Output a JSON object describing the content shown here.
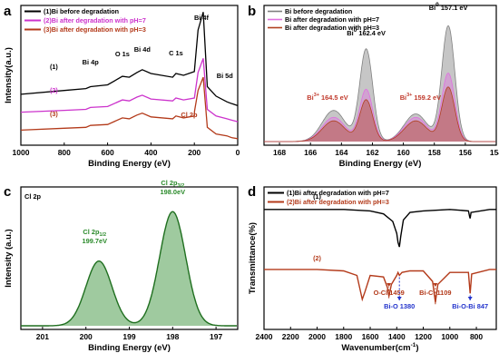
{
  "figure": {
    "panels": [
      "a",
      "b",
      "c",
      "d"
    ]
  },
  "chart_data": [
    {
      "panel": "a",
      "type": "line",
      "xlabel": "Binding Energy (eV)",
      "ylabel": "Intensity(a.u.)",
      "xlim": [
        1000,
        0
      ],
      "x_ticks": [
        1000,
        800,
        600,
        400,
        200,
        0
      ],
      "legend_position": "top-left",
      "series": [
        {
          "name": "(1)Bi before degradation",
          "tag": "(1)",
          "color": "#000000",
          "x": [
            1000,
            800,
            700,
            679,
            600,
            532,
            500,
            465,
            440,
            400,
            300,
            285,
            250,
            200,
            183,
            159,
            140,
            100,
            50,
            26,
            0
          ],
          "values": [
            820,
            860,
            880,
            900,
            920,
            1010,
            1000,
            1050,
            1080,
            1040,
            1000,
            1040,
            1020,
            1060,
            1500,
            1690,
            900,
            800,
            740,
            720,
            700
          ]
        },
        {
          "name": "(2)Bi after degradation with pH=7",
          "tag": "(2)",
          "color": "#cc33cc",
          "x": [
            1000,
            800,
            700,
            679,
            600,
            532,
            500,
            465,
            440,
            400,
            300,
            285,
            250,
            200,
            199,
            183,
            159,
            140,
            100,
            50,
            26,
            0
          ],
          "values": [
            630,
            650,
            660,
            680,
            690,
            760,
            750,
            790,
            810,
            770,
            750,
            780,
            760,
            780,
            790,
            1050,
            1200,
            660,
            590,
            560,
            545,
            530
          ]
        },
        {
          "name": "(3)Bi after degradation with pH=3",
          "tag": "(3)",
          "color": "#b33a1a",
          "x": [
            1000,
            800,
            700,
            679,
            600,
            532,
            500,
            465,
            440,
            400,
            300,
            285,
            250,
            200,
            199,
            183,
            159,
            140,
            100,
            50,
            26,
            0
          ],
          "values": [
            440,
            460,
            470,
            490,
            500,
            570,
            560,
            600,
            620,
            580,
            560,
            590,
            570,
            590,
            640,
            860,
            1000,
            470,
            400,
            380,
            360,
            350
          ]
        }
      ],
      "annotations": [
        "Bi 4f",
        "Bi 4p",
        "O 1s",
        "Bi 4d",
        "C 1s",
        "Bi 5d",
        "Cl 2p"
      ]
    },
    {
      "panel": "b",
      "type": "area",
      "xlabel": "Binding Energy (eV)",
      "xlim": [
        169,
        154
      ],
      "x_ticks": [
        168,
        166,
        164,
        162,
        160,
        158,
        156,
        154
      ],
      "legend_position": "top-left",
      "series": [
        {
          "name": "Bi before degradation",
          "color": "#808080",
          "peaks": [
            {
              "center": 164.5,
              "height": 0.27
            },
            {
              "center": 162.4,
              "height": 0.8
            },
            {
              "center": 159.2,
              "height": 0.24
            },
            {
              "center": 157.1,
              "height": 1.0
            }
          ]
        },
        {
          "name": "Bi after degradation with pH=7",
          "color": "#e070e0",
          "peaks": [
            {
              "center": 164.5,
              "height": 0.21
            },
            {
              "center": 162.4,
              "height": 0.45
            },
            {
              "center": 159.2,
              "height": 0.21
            },
            {
              "center": 157.1,
              "height": 0.59
            }
          ]
        },
        {
          "name": "Bi after degradation with pH=3",
          "color": "#b04020",
          "peaks": [
            {
              "center": 164.5,
              "height": 0.18
            },
            {
              "center": 162.4,
              "height": 0.36
            },
            {
              "center": 159.2,
              "height": 0.18
            },
            {
              "center": 157.1,
              "height": 0.47
            }
          ]
        }
      ],
      "labels": [
        {
          "main": "Bi",
          "sup": "0",
          "tail": " 157.1 eV",
          "x": 157.1,
          "level": 1.14
        },
        {
          "main": "Bi",
          "sup": "0",
          "tail": " 162.4 eV",
          "x": 162.4,
          "level": 0.92
        },
        {
          "main": "Bi",
          "sup": "3+",
          "tail": " 164.5 eV",
          "x": 164.9,
          "level": 0.36
        },
        {
          "main": "Bi",
          "sup": "3+",
          "tail": " 159.2 eV",
          "x": 158.9,
          "level": 0.36
        }
      ]
    },
    {
      "panel": "c",
      "type": "area",
      "title": "Cl 2p",
      "xlabel": "Binding Energy (eV)",
      "ylabel": "Intensity (a.u.)",
      "xlim": [
        201.5,
        196.5
      ],
      "x_ticks": [
        201,
        200,
        199,
        198,
        197
      ],
      "color": "#2a8a2a",
      "peaks": [
        {
          "center": 199.7,
          "height": 0.55
        },
        {
          "center": 198.0,
          "height": 0.97
        }
      ],
      "labels": [
        {
          "main": "Cl 2p",
          "sub": "1/2",
          "value": "199.7eV",
          "x": 199.8,
          "level": 0.7
        },
        {
          "main": "Cl 2p",
          "sub": "3/2",
          "value": "198.0eV",
          "x": 198.0,
          "level": 1.12
        }
      ]
    },
    {
      "panel": "d",
      "type": "line",
      "xlabel": "Wavenumber(cm",
      "xlabel_sup": "-1",
      "xlabel_tail": ")",
      "ylabel": "Transmittance(%)",
      "xlim": [
        2400,
        650
      ],
      "x_ticks": [
        2400,
        2200,
        2000,
        1800,
        1600,
        1400,
        1200,
        1000,
        800
      ],
      "legend_position": "top-left",
      "series": [
        {
          "name": "(1)Bi after degradation with pH=7",
          "tag": "(1)",
          "color": "#000000",
          "x": [
            2400,
            2000,
            1800,
            1600,
            1500,
            1430,
            1400,
            1390,
            1380,
            1370,
            1350,
            1300,
            1200,
            1000,
            860,
            850,
            847,
            840,
            700,
            650
          ],
          "values": [
            100,
            100,
            100,
            99,
            97,
            92,
            84,
            78,
            75,
            82,
            93,
            98,
            99,
            100,
            99,
            95,
            94,
            98,
            100,
            100
          ]
        },
        {
          "name": "(2)Bi after degradation with pH=3",
          "tag": "(2)",
          "color": "#b33a1a",
          "x": [
            2400,
            2000,
            1800,
            1700,
            1660,
            1640,
            1600,
            1500,
            1470,
            1459,
            1440,
            1400,
            1390,
            1380,
            1360,
            1300,
            1200,
            1130,
            1109,
            1090,
            1000,
            860,
            847,
            835,
            700,
            650
          ],
          "values": [
            60,
            60,
            59,
            56,
            40,
            45,
            56,
            55,
            48,
            42,
            50,
            56,
            58,
            56,
            58,
            59,
            59,
            52,
            38,
            50,
            58,
            58,
            44,
            57,
            60,
            60
          ]
        }
      ],
      "annotations": [
        {
          "text": "O-Cl 1459",
          "x": 1459,
          "color": "#b33a1a"
        },
        {
          "text": "Bi-O 1380",
          "x": 1380,
          "color": "#2233cc"
        },
        {
          "text": "Bi-Cl 1109",
          "x": 1109,
          "color": "#b33a1a"
        },
        {
          "text": "Bi-O-Bi 847",
          "x": 847,
          "color": "#2233cc"
        }
      ]
    }
  ]
}
